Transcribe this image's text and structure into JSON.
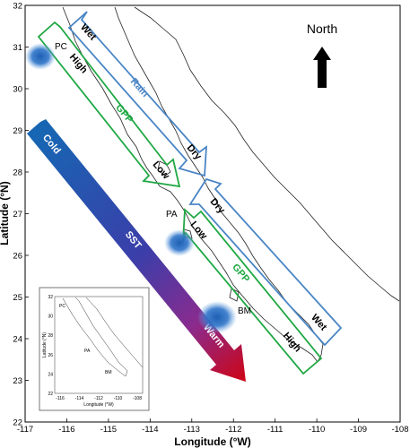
{
  "axes": {
    "xlabel": "Longitude (°W)",
    "ylabel": "Latitude (°N)",
    "x_ticks": [
      "-117",
      "-116",
      "-115",
      "-114",
      "-113",
      "-112",
      "-111",
      "-110",
      "-109",
      "-108"
    ],
    "y_ticks": [
      "32",
      "31",
      "30",
      "29",
      "28",
      "27",
      "26",
      "25",
      "24",
      "23",
      "22"
    ]
  },
  "north_label": "North",
  "sites": {
    "pc": "PC",
    "pa": "PA",
    "bm": "BM"
  },
  "rain_arrow": {
    "start": "Wet",
    "middle": "Rain",
    "end": "Dry",
    "color": "#4a86c5"
  },
  "rain_arrow_south": {
    "start": "Dry",
    "end": "Wet",
    "color": "#4a86c5"
  },
  "gpp_arrow": {
    "start": "High",
    "middle": "GPP",
    "end": "Low",
    "color": "#1fa843"
  },
  "gpp_arrow_south": {
    "start": "Low",
    "middle": "GPP",
    "end": "High",
    "color": "#1fa843"
  },
  "sst_arrow": {
    "start": "Cold",
    "middle": "SST",
    "end": "Warm",
    "cold_color": "#1766b3",
    "warm_color": "#c8081f"
  },
  "inset": {
    "xlabel": "Longitude (°W)",
    "ylabel": "Latitude (°N)",
    "x_ticks": [
      "-116",
      "-114",
      "-112",
      "-110",
      "-108"
    ],
    "y_ticks": [
      "32",
      "30",
      "28",
      "26",
      "24",
      "22"
    ],
    "sites": {
      "pc": "PC",
      "pa": "PA",
      "bm": "BM"
    }
  }
}
